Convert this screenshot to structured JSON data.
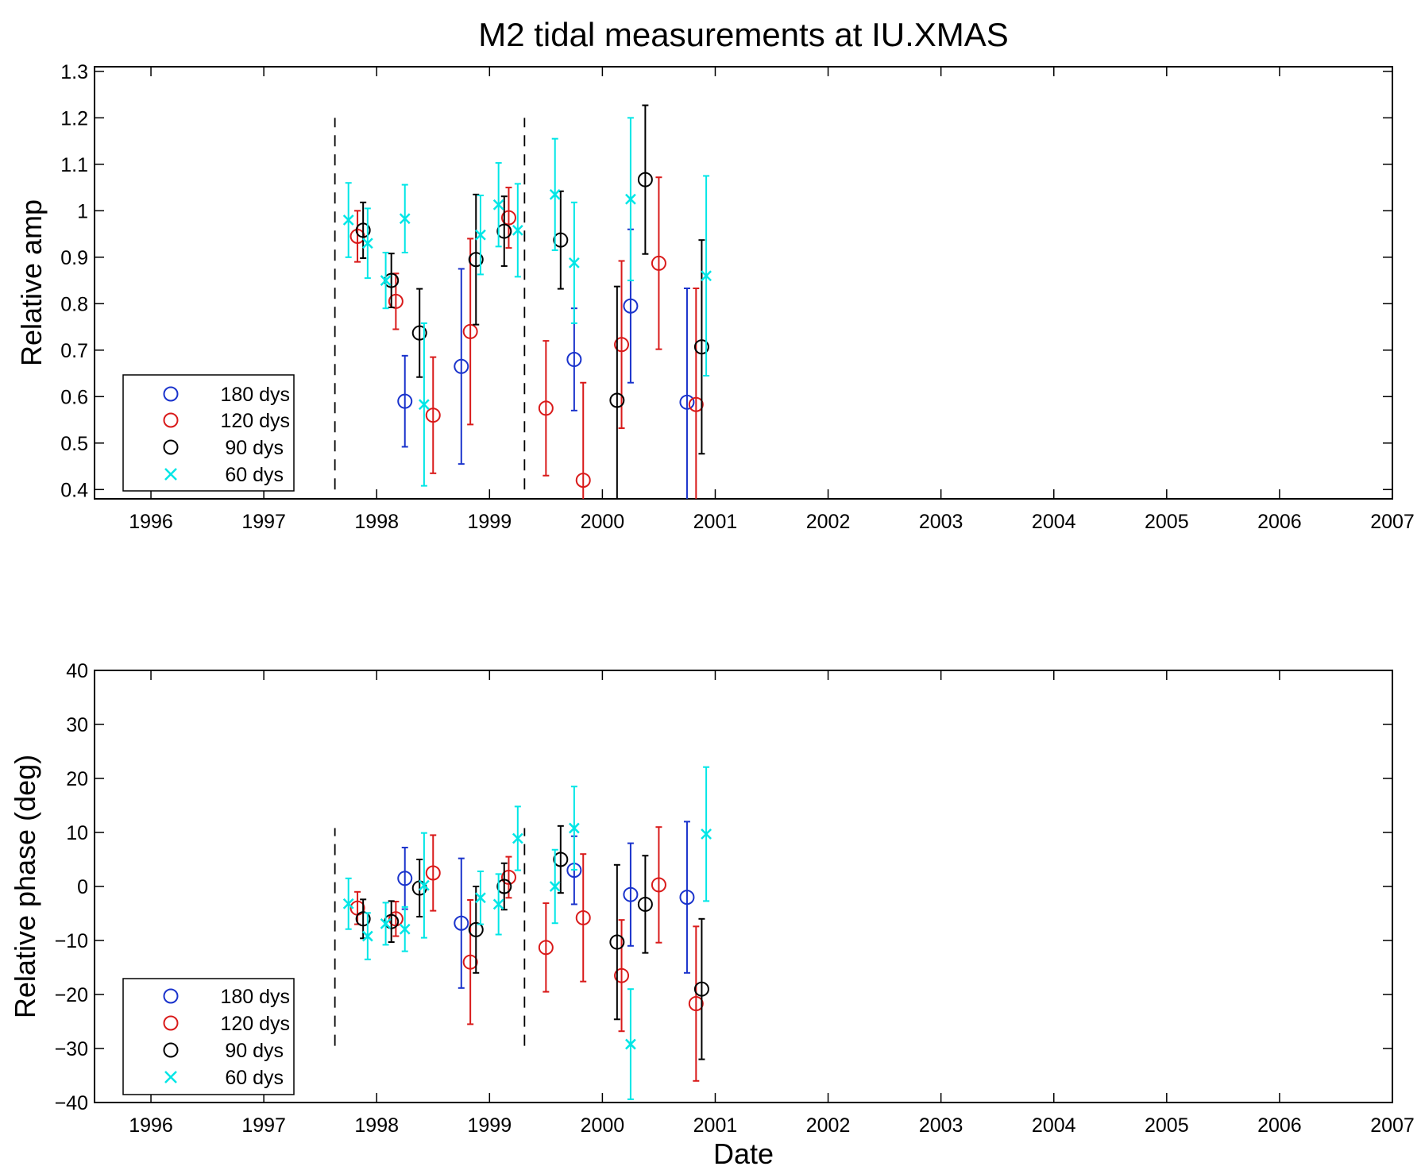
{
  "figure_title": "M2 tidal measurements at IU.XMAS",
  "colors": {
    "180 dys": "#1a33cc",
    "120 dys": "#d91a1a",
    "90 dys": "#000000",
    "60 dys": "#00e6e6"
  },
  "chart_data": [
    {
      "type": "scatter",
      "title": "M2 tidal measurements at IU.XMAS",
      "xlabel": "",
      "ylabel": "Relative amp",
      "xlim": [
        1995.5,
        2007
      ],
      "ylim": [
        0.38,
        1.31
      ],
      "x_ticks": [
        1996,
        1997,
        1998,
        1999,
        2000,
        2001,
        2002,
        2003,
        2004,
        2005,
        2006,
        2007
      ],
      "x_tick_labels": [
        "1996",
        "1997",
        "1998",
        "1999",
        "2000",
        "2001",
        "2002",
        "2003",
        "2004",
        "2005",
        "2006",
        "2007"
      ],
      "y_ticks": [
        0.4,
        0.5,
        0.6,
        0.7,
        0.8,
        0.9,
        1,
        1.1,
        1.2,
        1.3
      ],
      "y_tick_labels": [
        "0.4",
        "0.5",
        "0.6",
        "0.7",
        "0.8",
        "0.9",
        "1",
        "1.1",
        "1.2",
        "1.3"
      ],
      "vlines": [
        {
          "x": 1997.63,
          "y": [
            0.4,
            1.2
          ]
        },
        {
          "x": 1999.31,
          "y": [
            0.4,
            1.2
          ]
        }
      ],
      "legend": {
        "position": "bottom-left",
        "entries": [
          "180 dys",
          "120 dys",
          "90 dys",
          "60 dys"
        ]
      },
      "series": [
        {
          "name": "180 dys",
          "marker": "circle",
          "x": [
            1998.25,
            1998.75,
            1999.75,
            2000.25,
            2000.75
          ],
          "y": [
            0.59,
            0.665,
            0.68,
            0.795,
            0.588
          ],
          "err": [
            0.098,
            0.21,
            0.11,
            0.165,
            0.245
          ]
        },
        {
          "name": "120 dys",
          "marker": "circle",
          "x": [
            1997.83,
            1998.17,
            1998.5,
            1998.83,
            1999.17,
            1999.5,
            1999.83,
            2000.17,
            2000.5,
            2000.83
          ],
          "y": [
            0.945,
            0.805,
            0.56,
            0.74,
            0.985,
            0.575,
            0.42,
            0.712,
            0.887,
            0.583
          ],
          "err": [
            0.055,
            0.06,
            0.125,
            0.2,
            0.065,
            0.145,
            0.21,
            0.18,
            0.185,
            0.25
          ]
        },
        {
          "name": "90 dys",
          "marker": "circle",
          "x": [
            1997.88,
            1998.13,
            1998.38,
            1998.88,
            1999.13,
            1999.63,
            2000.13,
            2000.38,
            2000.88
          ],
          "y": [
            0.958,
            0.85,
            0.737,
            0.895,
            0.956,
            0.937,
            0.592,
            1.067,
            0.707
          ],
          "err": [
            0.06,
            0.058,
            0.095,
            0.14,
            0.075,
            0.105,
            0.245,
            0.16,
            0.23
          ]
        },
        {
          "name": "60 dys",
          "marker": "x",
          "x": [
            1997.75,
            1997.92,
            1998.08,
            1998.25,
            1998.42,
            1998.92,
            1999.08,
            1999.25,
            1999.58,
            1999.75,
            2000.25,
            2000.92
          ],
          "y": [
            0.98,
            0.93,
            0.85,
            0.983,
            0.583,
            0.948,
            1.013,
            0.958,
            1.035,
            0.888,
            1.025,
            0.86
          ],
          "err": [
            0.08,
            0.075,
            0.06,
            0.073,
            0.175,
            0.085,
            0.09,
            0.1,
            0.12,
            0.13,
            0.175,
            0.215
          ]
        }
      ]
    },
    {
      "type": "scatter",
      "title": "",
      "xlabel": "Date",
      "ylabel": "Relative phase (deg)",
      "xlim": [
        1995.5,
        2007
      ],
      "ylim": [
        -40,
        40
      ],
      "x_ticks": [
        1996,
        1997,
        1998,
        1999,
        2000,
        2001,
        2002,
        2003,
        2004,
        2005,
        2006,
        2007
      ],
      "x_tick_labels": [
        "1996",
        "1997",
        "1998",
        "1999",
        "2000",
        "2001",
        "2002",
        "2003",
        "2004",
        "2005",
        "2006",
        "2007"
      ],
      "y_ticks": [
        -40,
        -30,
        -20,
        -10,
        0,
        10,
        20,
        30,
        40
      ],
      "y_tick_labels": [
        "−40",
        "−30",
        "−20",
        "−10",
        "0",
        "10",
        "20",
        "30",
        "40"
      ],
      "vlines": [
        {
          "x": 1997.63,
          "y": [
            -29.5,
            10.8
          ]
        },
        {
          "x": 1999.31,
          "y": [
            -29.5,
            10.8
          ]
        }
      ],
      "legend": {
        "position": "bottom-left",
        "entries": [
          "180 dys",
          "120 dys",
          "90 dys",
          "60 dys"
        ]
      },
      "series": [
        {
          "name": "180 dys",
          "marker": "circle",
          "x": [
            1998.25,
            1998.75,
            1999.75,
            2000.25,
            2000.75
          ],
          "y": [
            1.5,
            -6.8,
            3.0,
            -1.5,
            -2.0
          ],
          "err": [
            5.7,
            12.0,
            6.3,
            9.5,
            14.0
          ]
        },
        {
          "name": "120 dys",
          "marker": "circle",
          "x": [
            1997.83,
            1998.17,
            1998.5,
            1998.83,
            1999.17,
            1999.5,
            1999.83,
            2000.17,
            2000.5,
            2000.83
          ],
          "y": [
            -4.0,
            -6.0,
            2.5,
            -14.0,
            1.7,
            -11.3,
            -5.8,
            -16.5,
            0.3,
            -21.7
          ],
          "err": [
            3.0,
            3.2,
            7.0,
            11.5,
            3.8,
            8.2,
            11.8,
            10.3,
            10.7,
            14.3
          ]
        },
        {
          "name": "90 dys",
          "marker": "circle",
          "x": [
            1997.88,
            1998.13,
            1998.38,
            1998.88,
            1999.13,
            1999.63,
            2000.13,
            2000.38,
            2000.88
          ],
          "y": [
            -6.0,
            -6.5,
            -0.3,
            -8.0,
            0.0,
            5.0,
            -10.3,
            -3.3,
            -19.0
          ],
          "err": [
            3.6,
            3.8,
            5.3,
            8.0,
            4.3,
            6.2,
            14.3,
            9.0,
            13.0
          ]
        },
        {
          "name": "60 dys",
          "marker": "x",
          "x": [
            1997.75,
            1997.92,
            1998.08,
            1998.25,
            1998.42,
            1998.92,
            1999.08,
            1999.25,
            1999.58,
            1999.75,
            2000.25,
            2000.92
          ],
          "y": [
            -3.2,
            -9.2,
            -6.9,
            -7.9,
            0.2,
            -2.1,
            -3.3,
            8.9,
            0.0,
            10.8,
            -29.2,
            9.7
          ],
          "err": [
            4.7,
            4.3,
            3.9,
            4.1,
            9.7,
            4.9,
            5.6,
            5.9,
            6.8,
            7.7,
            10.2,
            12.4
          ]
        }
      ]
    }
  ]
}
